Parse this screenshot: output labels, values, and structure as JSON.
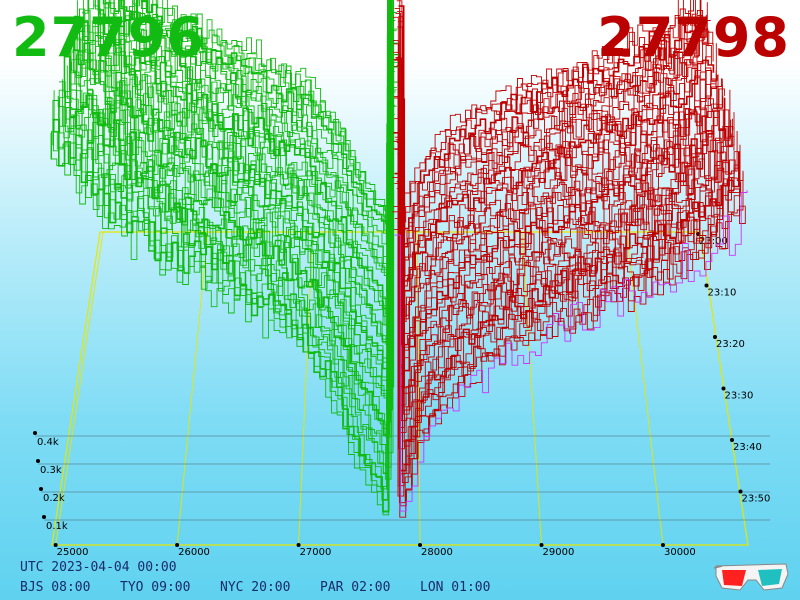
{
  "header": {
    "bid_price": "27796",
    "ask_price": "27798",
    "bid_color": "#11bb11",
    "ask_color": "#bb0000"
  },
  "footer": {
    "utc": "UTC 2023-04-04 00:00",
    "cities": [
      {
        "label": "BJS 08:00"
      },
      {
        "label": "TYO 09:00"
      },
      {
        "label": "NYC 20:00"
      },
      {
        "label": "PAR 02:00"
      },
      {
        "label": "LON 01:00"
      }
    ]
  },
  "colors": {
    "bid_line": "#11bb11",
    "ask_line": "#c00000",
    "axis": "#e6e600",
    "frame_ask_front": "#cc33ff"
  },
  "chart_data": {
    "type": "area",
    "title": "",
    "x_axis": {
      "ticks": [
        "25000",
        "26000",
        "27000",
        "28000",
        "29000",
        "30000"
      ],
      "range": [
        24970,
        30700
      ]
    },
    "y_axis": {
      "ticks": [
        "0.1k",
        "0.2k",
        "0.3k",
        "0.4k"
      ],
      "range": [
        0,
        500
      ]
    },
    "time_axis": {
      "ticks": [
        "23:00",
        "23:10",
        "23:20",
        "23:30",
        "23:40",
        "23:50"
      ]
    },
    "mid_price": 27797,
    "frames": 48,
    "bid_depth_profile": {
      "price": [
        27796,
        27700,
        27500,
        27300,
        27000,
        26500,
        26000,
        25500,
        25000
      ],
      "cum_volume": [
        3,
        40,
        85,
        150,
        215,
        255,
        290,
        340,
        420
      ]
    },
    "ask_depth_profile": {
      "price": [
        27798,
        27900,
        28000,
        28300,
        28700,
        29200,
        29800,
        30400,
        30700
      ],
      "cum_volume": [
        3,
        45,
        95,
        150,
        190,
        220,
        255,
        300,
        350
      ]
    },
    "legend": "none",
    "grid": true
  },
  "icons": {
    "glasses": "3d-glasses-icon"
  }
}
